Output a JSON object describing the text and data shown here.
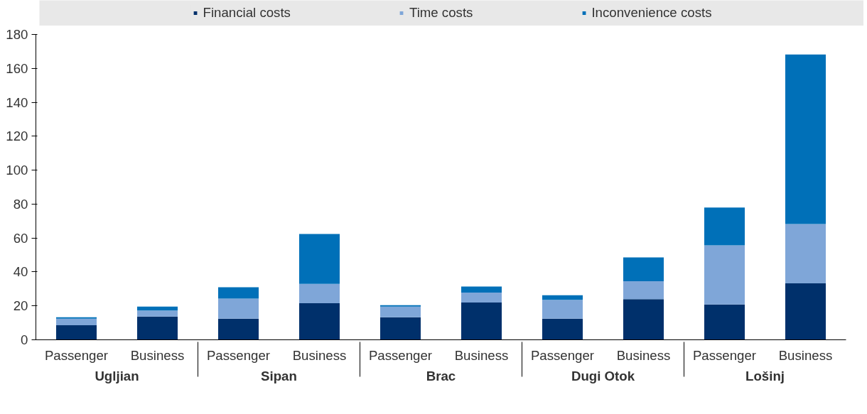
{
  "chart_data": {
    "type": "bar",
    "stacked": true,
    "categories": [
      "Passenger",
      "Business",
      "Passenger",
      "Business",
      "Passenger",
      "Business",
      "Passenger",
      "Business",
      "Passenger",
      "Business"
    ],
    "annotations": [
      "Ugljian",
      "Sipan",
      "Brac",
      "Dugi Otok",
      "Lošinj"
    ],
    "series": [
      {
        "name": "Financial costs",
        "color": "#00306b",
        "values": [
          8.6,
          13.7,
          12.5,
          21.6,
          13.3,
          22,
          12.5,
          24,
          20.8,
          33.3
        ]
      },
      {
        "name": "Time costs",
        "color": "#7fa6d8",
        "values": [
          3.9,
          3.6,
          11.8,
          11.4,
          6.3,
          5.8,
          11,
          10.5,
          34.9,
          34.9
        ]
      },
      {
        "name": "Inconvenience costs",
        "color": "#0070b8",
        "values": [
          0.8,
          2.3,
          6.7,
          29.4,
          0.8,
          3.6,
          2.8,
          14.1,
          22.3,
          100
        ]
      }
    ],
    "ylim": [
      0,
      180
    ],
    "yticks": [
      0,
      20,
      40,
      60,
      80,
      100,
      120,
      140,
      160,
      180
    ],
    "grid": false,
    "legend": "top"
  }
}
